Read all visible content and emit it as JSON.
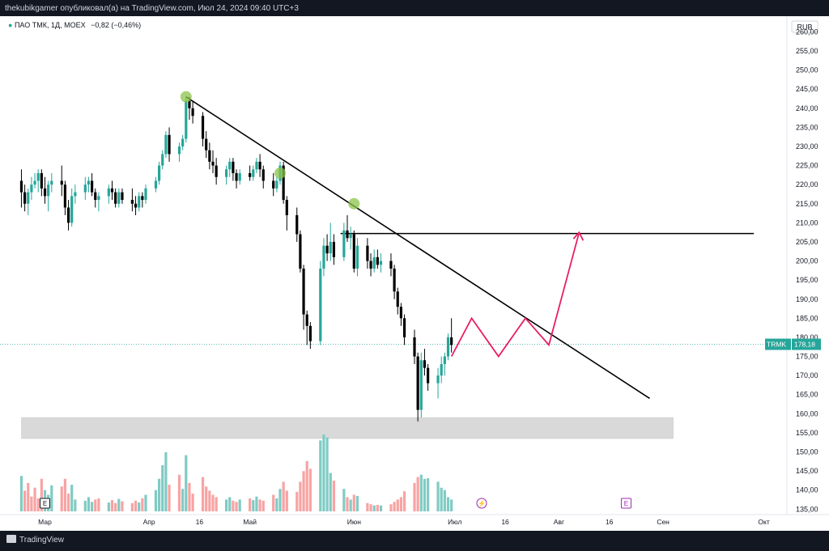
{
  "header": {
    "publish_line": "thekubikgamer опубликовал(а) на TradingView.com, Июл 24, 2024 09:40 UTC+3"
  },
  "legend": {
    "symbol_text": "ПАО ТМК, 1Д, MOEX",
    "change_text": "−0,82 (−0,46%)"
  },
  "footer": {
    "brand": "TradingView"
  },
  "colors": {
    "up": "#26a69a",
    "down": "#000000",
    "up_volume": "#80cbc4",
    "down_volume": "#f8a3a3",
    "trendline": "#000000",
    "resistance": "#000000",
    "projection": "#e91e63",
    "zone": "#d9d9d9",
    "touch_marker": "#8bc34a",
    "price_label": "#26a69a"
  },
  "chart_data": {
    "type": "candlestick",
    "currency": "RUB",
    "last_price_label": "TRMK",
    "last_price_value": "178,18",
    "last_price": 178.18,
    "y_ticks": [
      260,
      255,
      250,
      245,
      240,
      235,
      230,
      225,
      220,
      215,
      210,
      205,
      200,
      195,
      190,
      185,
      180,
      175,
      170,
      165,
      160,
      155,
      150,
      145,
      140,
      135
    ],
    "y_tick_labels": [
      "260,00",
      "255,00",
      "250,00",
      "245,00",
      "240,00",
      "235,00",
      "230,00",
      "225,00",
      "220,00",
      "215,00",
      "210,00",
      "205,00",
      "200,00",
      "195,00",
      "190,00",
      "185,00",
      "180,00",
      "175,00",
      "170,00",
      "165,00",
      "160,00",
      "155,00",
      "150,00",
      "145,00",
      "140,00",
      "135,00"
    ],
    "ylim": [
      134,
      262
    ],
    "x_ticks": [
      {
        "label": "Мар",
        "day": 0
      },
      {
        "label": "Апр",
        "day": 31
      },
      {
        "label": "16",
        "day": 46
      },
      {
        "label": "Май",
        "day": 61
      },
      {
        "label": "Июн",
        "day": 92
      },
      {
        "label": "Июл",
        "day": 122
      },
      {
        "label": "16",
        "day": 137
      },
      {
        "label": "Авг",
        "day": 153
      },
      {
        "label": "16",
        "day": 168
      },
      {
        "label": "Сен",
        "day": 184
      },
      {
        "label": "Окт",
        "day": 214
      }
    ],
    "candles": [
      [
        -7,
        221,
        224,
        214,
        218
      ],
      [
        -6,
        218,
        220,
        213,
        215
      ],
      [
        -5,
        215,
        219,
        212,
        218
      ],
      [
        -4,
        218,
        222,
        216,
        220
      ],
      [
        -3,
        220,
        223,
        219,
        221
      ],
      [
        -2,
        221,
        224,
        218,
        223
      ],
      [
        -1,
        223,
        224,
        217,
        219
      ],
      [
        0,
        219,
        222,
        215,
        217
      ],
      [
        1,
        217,
        221,
        213,
        220
      ],
      [
        2,
        220,
        223,
        218,
        221
      ],
      [
        5,
        221,
        225,
        217,
        220
      ],
      [
        6,
        220,
        221,
        212,
        214
      ],
      [
        7,
        214,
        216,
        208,
        210
      ],
      [
        8,
        210,
        219,
        209,
        217
      ],
      [
        9,
        217,
        220,
        215,
        218
      ],
      [
        12,
        218,
        222,
        216,
        220
      ],
      [
        13,
        220,
        222,
        218,
        221
      ],
      [
        14,
        221,
        223,
        217,
        218
      ],
      [
        15,
        218,
        219,
        214,
        216
      ],
      [
        16,
        216,
        218,
        213,
        217
      ],
      [
        19,
        217,
        220,
        215,
        219
      ],
      [
        20,
        219,
        221,
        216,
        218
      ],
      [
        21,
        218,
        219,
        214,
        215
      ],
      [
        22,
        215,
        219,
        214,
        218
      ],
      [
        23,
        218,
        219,
        215,
        216
      ],
      [
        26,
        216,
        219,
        213,
        215
      ],
      [
        27,
        215,
        217,
        212,
        214
      ],
      [
        28,
        214,
        218,
        213,
        217
      ],
      [
        29,
        217,
        218,
        214,
        216
      ],
      [
        30,
        216,
        220,
        215,
        219
      ],
      [
        33,
        219,
        222,
        218,
        221
      ],
      [
        34,
        221,
        226,
        220,
        225
      ],
      [
        35,
        225,
        229,
        224,
        228
      ],
      [
        36,
        228,
        234,
        227,
        233
      ],
      [
        37,
        233,
        235,
        226,
        228
      ],
      [
        40,
        228,
        231,
        226,
        230
      ],
      [
        41,
        230,
        233,
        229,
        232
      ],
      [
        42,
        232,
        243,
        231,
        242
      ],
      [
        43,
        242,
        243,
        237,
        240
      ],
      [
        44,
        240,
        242,
        236,
        238
      ],
      [
        47,
        238,
        239,
        230,
        232
      ],
      [
        48,
        232,
        234,
        227,
        229
      ],
      [
        49,
        229,
        231,
        224,
        226
      ],
      [
        50,
        226,
        229,
        223,
        225
      ],
      [
        51,
        225,
        227,
        220,
        222
      ],
      [
        54,
        222,
        225,
        220,
        224
      ],
      [
        55,
        224,
        227,
        222,
        226
      ],
      [
        56,
        226,
        227,
        221,
        223
      ],
      [
        57,
        223,
        224,
        219,
        221
      ],
      [
        58,
        221,
        224,
        220,
        223
      ],
      [
        61,
        223,
        225,
        221,
        222
      ],
      [
        62,
        222,
        225,
        221,
        224
      ],
      [
        63,
        224,
        227,
        223,
        226
      ],
      [
        64,
        226,
        228,
        222,
        224
      ],
      [
        65,
        224,
        225,
        219,
        221
      ],
      [
        68,
        221,
        223,
        217,
        219
      ],
      [
        69,
        219,
        222,
        218,
        221
      ],
      [
        70,
        221,
        226,
        220,
        225
      ],
      [
        71,
        225,
        226,
        215,
        216
      ],
      [
        72,
        216,
        217,
        208,
        212
      ],
      [
        75,
        212,
        214,
        205,
        207
      ],
      [
        76,
        207,
        208,
        197,
        198
      ],
      [
        77,
        198,
        199,
        182,
        186
      ],
      [
        78,
        186,
        187,
        178,
        183
      ],
      [
        79,
        183,
        184,
        177,
        179
      ],
      [
        82,
        179,
        200,
        178,
        198
      ],
      [
        83,
        198,
        206,
        196,
        204
      ],
      [
        84,
        204,
        207,
        200,
        202
      ],
      [
        85,
        202,
        210,
        200,
        205
      ],
      [
        86,
        205,
        207,
        199,
        201
      ],
      [
        89,
        201,
        210,
        200,
        208
      ],
      [
        90,
        208,
        212,
        205,
        206
      ],
      [
        91,
        206,
        209,
        203,
        207
      ],
      [
        92,
        207,
        208,
        197,
        198
      ],
      [
        93,
        198,
        206,
        196,
        204
      ],
      [
        96,
        204,
        206,
        198,
        200
      ],
      [
        97,
        200,
        202,
        196,
        198
      ],
      [
        98,
        198,
        203,
        197,
        201
      ],
      [
        99,
        201,
        203,
        198,
        199
      ],
      [
        100,
        199,
        202,
        197,
        200
      ],
      [
        103,
        200,
        202,
        196,
        198
      ],
      [
        104,
        198,
        199,
        190,
        192
      ],
      [
        105,
        192,
        193,
        186,
        188
      ],
      [
        106,
        188,
        189,
        183,
        185
      ],
      [
        107,
        185,
        186,
        178,
        180
      ],
      [
        110,
        180,
        182,
        173,
        175
      ],
      [
        111,
        175,
        176,
        158,
        161
      ],
      [
        112,
        161,
        176,
        159,
        174
      ],
      [
        113,
        174,
        177,
        170,
        172
      ],
      [
        114,
        172,
        173,
        166,
        168
      ],
      [
        117,
        168,
        172,
        164,
        170
      ],
      [
        118,
        170,
        175,
        168,
        173
      ],
      [
        119,
        173,
        176,
        170,
        175
      ],
      [
        120,
        175,
        181,
        174,
        180
      ],
      [
        121,
        180,
        185,
        176,
        178
      ]
    ],
    "volumes": [
      [
        -7,
        60,
        1
      ],
      [
        -6,
        35,
        0
      ],
      [
        -5,
        48,
        0
      ],
      [
        -4,
        25,
        0
      ],
      [
        -3,
        40,
        0
      ],
      [
        -2,
        22,
        0
      ],
      [
        -1,
        55,
        0
      ],
      [
        0,
        36,
        1
      ],
      [
        1,
        28,
        1
      ],
      [
        2,
        44,
        1
      ],
      [
        5,
        42,
        0
      ],
      [
        6,
        55,
        0
      ],
      [
        7,
        30,
        0
      ],
      [
        8,
        45,
        1
      ],
      [
        9,
        20,
        1
      ],
      [
        12,
        18,
        1
      ],
      [
        13,
        24,
        1
      ],
      [
        14,
        16,
        1
      ],
      [
        15,
        20,
        0
      ],
      [
        16,
        22,
        0
      ],
      [
        19,
        15,
        1
      ],
      [
        20,
        19,
        0
      ],
      [
        21,
        14,
        0
      ],
      [
        22,
        21,
        1
      ],
      [
        23,
        17,
        0
      ],
      [
        26,
        14,
        0
      ],
      [
        27,
        18,
        0
      ],
      [
        28,
        15,
        1
      ],
      [
        29,
        22,
        0
      ],
      [
        30,
        28,
        1
      ],
      [
        33,
        36,
        1
      ],
      [
        34,
        55,
        1
      ],
      [
        35,
        78,
        1
      ],
      [
        36,
        100,
        1
      ],
      [
        37,
        45,
        0
      ],
      [
        40,
        62,
        0
      ],
      [
        41,
        38,
        1
      ],
      [
        42,
        95,
        1
      ],
      [
        43,
        48,
        0
      ],
      [
        44,
        30,
        0
      ],
      [
        47,
        58,
        0
      ],
      [
        48,
        42,
        0
      ],
      [
        49,
        35,
        0
      ],
      [
        50,
        28,
        0
      ],
      [
        51,
        24,
        0
      ],
      [
        54,
        20,
        1
      ],
      [
        55,
        24,
        1
      ],
      [
        56,
        18,
        0
      ],
      [
        57,
        16,
        0
      ],
      [
        58,
        20,
        1
      ],
      [
        61,
        22,
        0
      ],
      [
        62,
        19,
        1
      ],
      [
        63,
        25,
        1
      ],
      [
        64,
        20,
        0
      ],
      [
        65,
        18,
        0
      ],
      [
        68,
        28,
        0
      ],
      [
        69,
        22,
        1
      ],
      [
        70,
        38,
        1
      ],
      [
        71,
        50,
        0
      ],
      [
        72,
        35,
        0
      ],
      [
        75,
        33,
        0
      ],
      [
        76,
        50,
        0
      ],
      [
        77,
        68,
        0
      ],
      [
        78,
        85,
        0
      ],
      [
        79,
        72,
        0
      ],
      [
        82,
        120,
        1
      ],
      [
        83,
        130,
        1
      ],
      [
        84,
        125,
        1
      ],
      [
        85,
        65,
        1
      ],
      [
        86,
        52,
        0
      ],
      [
        89,
        38,
        1
      ],
      [
        90,
        24,
        0
      ],
      [
        91,
        20,
        1
      ],
      [
        92,
        28,
        0
      ],
      [
        93,
        26,
        1
      ],
      [
        96,
        14,
        0
      ],
      [
        97,
        12,
        0
      ],
      [
        98,
        10,
        1
      ],
      [
        99,
        11,
        0
      ],
      [
        100,
        10,
        1
      ],
      [
        103,
        12,
        0
      ],
      [
        104,
        16,
        0
      ],
      [
        105,
        20,
        0
      ],
      [
        106,
        24,
        0
      ],
      [
        107,
        34,
        0
      ],
      [
        110,
        48,
        0
      ],
      [
        111,
        58,
        0
      ],
      [
        112,
        62,
        1
      ],
      [
        113,
        55,
        1
      ],
      [
        114,
        56,
        1
      ],
      [
        117,
        50,
        1
      ],
      [
        118,
        40,
        1
      ],
      [
        119,
        36,
        1
      ],
      [
        120,
        24,
        1
      ],
      [
        121,
        20,
        1
      ]
    ],
    "trendline": [
      [
        42,
        243
      ],
      [
        180,
        164
      ]
    ],
    "resistance": {
      "price": 207.2,
      "from_day": 88,
      "to_day": 211
    },
    "touch_points": [
      [
        42,
        243
      ],
      [
        70,
        223
      ],
      [
        92,
        215
      ]
    ],
    "projection": [
      [
        121,
        175
      ],
      [
        127,
        185
      ],
      [
        135,
        175
      ],
      [
        143,
        185
      ],
      [
        150,
        178
      ],
      [
        159,
        207.5
      ]
    ],
    "projection_arrowhead": [
      159,
      207.5
    ],
    "support_zone": {
      "from_day": -7,
      "to_day": 187,
      "price_low": 153.5,
      "price_high": 159
    },
    "event_markers": [
      {
        "day": 0,
        "text": "E",
        "color": "#131722"
      },
      {
        "day": 130,
        "text": "⚡",
        "color": "#9c27b0"
      },
      {
        "day": 173,
        "text": "E",
        "color": "#9c27b0"
      }
    ]
  }
}
